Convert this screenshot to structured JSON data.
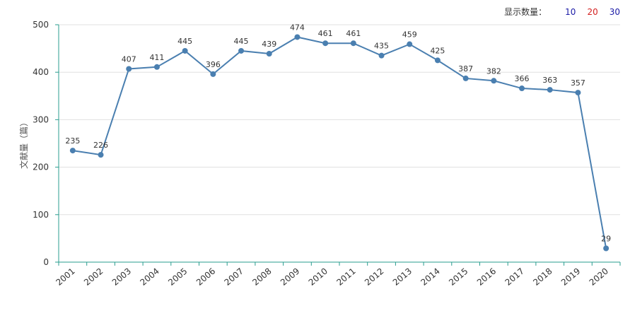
{
  "display_options": {
    "label": "显示数量：",
    "options": [
      {
        "label": "10",
        "color": "#1a1aa6"
      },
      {
        "label": "20",
        "color": "#d42020"
      },
      {
        "label": "30",
        "color": "#1a1aa6"
      }
    ]
  },
  "chart_data": {
    "type": "line",
    "title": "",
    "xlabel": "",
    "ylabel": "文献量（篇）",
    "ylim": [
      0,
      500
    ],
    "yticks": [
      0,
      100,
      200,
      300,
      400,
      500
    ],
    "grid": true,
    "categories": [
      "2001",
      "2002",
      "2003",
      "2004",
      "2005",
      "2006",
      "2007",
      "2008",
      "2009",
      "2010",
      "2011",
      "2012",
      "2013",
      "2014",
      "2015",
      "2016",
      "2017",
      "2018",
      "2019",
      "2020"
    ],
    "series": [
      {
        "name": "文献量",
        "color": "#4a7fb0",
        "values": [
          235,
          226,
          407,
          411,
          445,
          396,
          445,
          439,
          474,
          461,
          461,
          435,
          459,
          425,
          387,
          382,
          366,
          363,
          357,
          29
        ]
      }
    ]
  }
}
